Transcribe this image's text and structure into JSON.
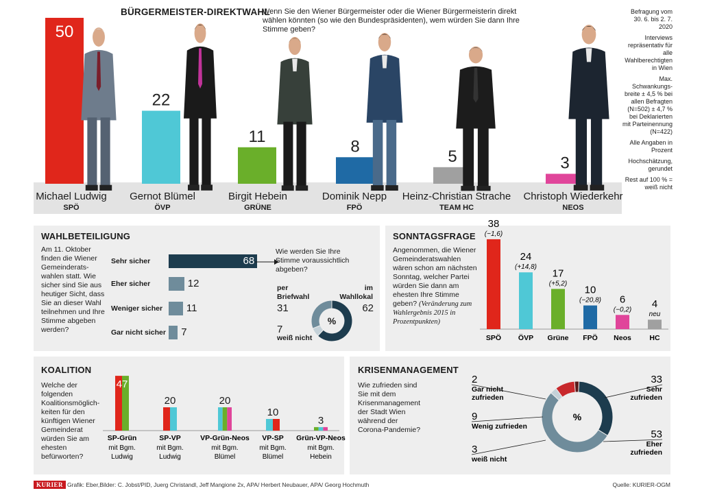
{
  "colors": {
    "spoe": "#e0261b",
    "oevp": "#4fc8d6",
    "gruene": "#6aaf2a",
    "fpoe": "#1f6aa5",
    "team_hc": "#a0a0a0",
    "neos": "#e0459a",
    "dark": "#1d3c4e",
    "mid": "#6f8c9b",
    "light": "#c4d1d8",
    "panel": "#eeeeee"
  },
  "direktwahl": {
    "title": "BÜRGERMEISTER-DIREKTWAHL",
    "question": "Wenn Sie den Wiener Bürgermeister oder die Wiener Bürgermeisterin direkt wählen könnten (so wie den Bundespräsidenten), wem würden Sie dann Ihre Stimme geben?",
    "notes": [
      "Befragung vom 30. 6. bis 2. 7. 2020",
      "Interviews repräsentativ für alle Wahlberechtigten in Wien",
      "Max. Schwankungs-breite ± 4,5 % bei allen Befragten (N=502) ± 4,7 % bei Deklarierten mit Parteinennung (N=422)",
      "Alle Angaben in Prozent",
      "Hochschätzung, gerundet",
      "Rest auf 100 % = weiß nicht"
    ]
  },
  "chart_data": [
    {
      "type": "bar",
      "name": "Bürgermeister-Direktwahl",
      "categories": [
        "Michael Ludwig",
        "Gernot Blümel",
        "Birgit Hebein",
        "Dominik Nepp",
        "Heinz-Christian Strache",
        "Christoph Wiederkehr"
      ],
      "parties": [
        "SPÖ",
        "ÖVP",
        "GRÜNE",
        "FPÖ",
        "TEAM HC",
        "NEOS"
      ],
      "values": [
        50,
        22,
        11,
        8,
        5,
        3
      ],
      "colors": [
        "#e0261b",
        "#4fc8d6",
        "#6aaf2a",
        "#1f6aa5",
        "#a0a0a0",
        "#e0459a"
      ]
    },
    {
      "type": "bar",
      "name": "Wahlbeteiligung",
      "title": "WAHLBETEILIGUNG",
      "categories": [
        "Sehr sicher",
        "Eher sicher",
        "Weniger sicher",
        "Gar nicht sicher"
      ],
      "values": [
        68,
        12,
        11,
        7
      ]
    },
    {
      "type": "pie",
      "name": "Stimmabgabe",
      "categories": [
        "per Briefwahl",
        "im Wahllokal",
        "weiß nicht"
      ],
      "values": [
        31,
        62,
        7
      ]
    },
    {
      "type": "bar",
      "name": "Sonntagsfrage",
      "title": "SONNTAGSFRAGE",
      "categories": [
        "SPÖ",
        "ÖVP",
        "Grüne",
        "FPÖ",
        "Neos",
        "HC"
      ],
      "values": [
        38,
        24,
        17,
        10,
        6,
        4
      ],
      "changes": [
        "(−1,6)",
        "(+14,8)",
        "(+5,2)",
        "(−20,8)",
        "(−0,2)",
        "neu"
      ],
      "colors": [
        "#e0261b",
        "#4fc8d6",
        "#6aaf2a",
        "#1f6aa5",
        "#e0459a",
        "#a0a0a0"
      ]
    },
    {
      "type": "bar",
      "name": "Koalition",
      "title": "KOALITION",
      "categories": [
        "SP-Grün",
        "SP-VP",
        "VP-Grün-Neos",
        "VP-SP",
        "Grün-VP-Neos"
      ],
      "subs": [
        "mit Bgm. Ludwig",
        "mit Bgm. Ludwig",
        "mit Bgm. Blümel",
        "mit Bgm. Blümel",
        "mit Bgm. Hebein"
      ],
      "values": [
        47,
        20,
        20,
        10,
        3
      ]
    },
    {
      "type": "pie",
      "name": "Krisenmanagement",
      "title": "KRISENMANAGEMENT",
      "categories": [
        "Gar nicht zufrieden",
        "Wenig zufrieden",
        "weiß nicht",
        "Sehr zufrieden",
        "Eher zufrieden"
      ],
      "values": [
        2,
        9,
        3,
        33,
        53
      ]
    }
  ],
  "wahlbeteiligung": {
    "question": "Am 11. Oktober finden die Wiener Gemeinderats-wahlen statt. Wie sicher sind Sie aus heutiger Sicht, dass Sie an dieser Wahl teilnehmen und Ihre Stimme abgeben werden?",
    "side_q": "Wie werden Sie Ihre Stimme voraussichtlich abgeben?",
    "per": "per Briefwahl",
    "im": "im Wahllokal",
    "weiss": "weiß nicht",
    "pct": "%"
  },
  "sonntagsfrage": {
    "question": "Angenommen, die Wiener Gemeinderatswahlen wären schon am nächsten Sonntag, welcher Partei würden Sie dann am ehesten Ihre Stimme geben?",
    "note": "(Veränderung zum Wahlergebnis 2015 in Prozentpunkten)"
  },
  "koalition": {
    "question": "Welche der folgenden Koalitionsmöglich-keiten für den künftigen Wiener Gemeinderat würden Sie am ehesten befürworten?"
  },
  "krisen": {
    "question": "Wie zufrieden sind Sie mit dem Krisenmanagement der Stadt Wien während der Corona-Pandemie?",
    "pct": "%"
  },
  "footer": {
    "brand": "KURIER",
    "credits": "Grafik: Eber,Bilder: C. Jobst/PID, Juerg Christandl, Jeff Mangione 2x, APA/ Herbert Neubauer, APA/ Georg Hochmuth",
    "source": "Quelle: KURIER-OGM"
  }
}
